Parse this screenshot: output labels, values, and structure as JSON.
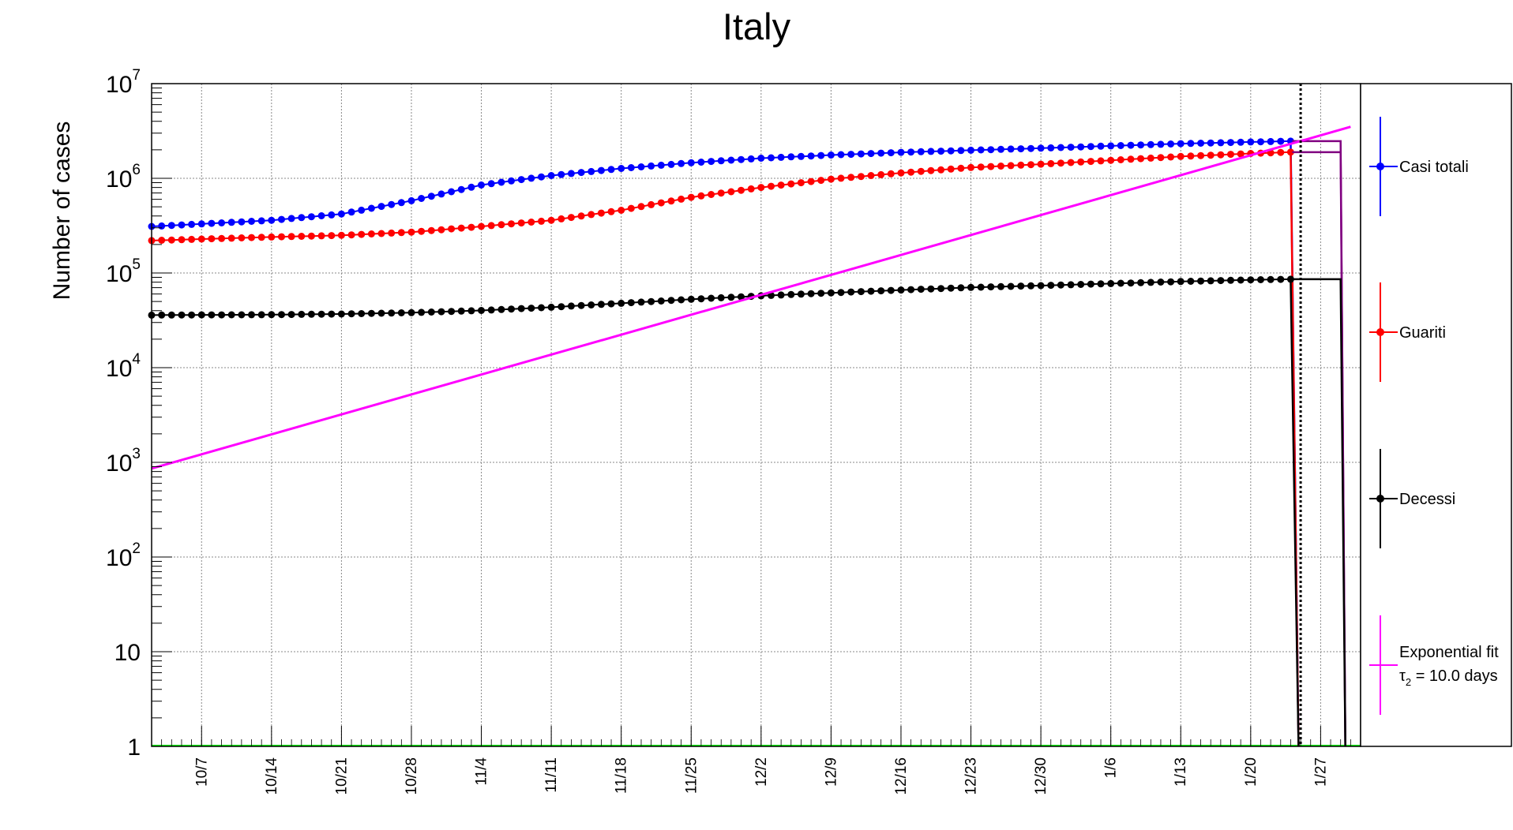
{
  "chart_data": {
    "type": "line",
    "title": "Italy",
    "ylabel": "Number of cases",
    "xlabel": "",
    "y_scale": "log",
    "ylim": [
      1,
      10000000
    ],
    "y_ticks": [
      {
        "value": 1,
        "base": "1",
        "exp": ""
      },
      {
        "value": 10,
        "base": "10",
        "exp": ""
      },
      {
        "value": 100,
        "base": "10",
        "exp": "2"
      },
      {
        "value": 1000,
        "base": "10",
        "exp": "3"
      },
      {
        "value": 10000,
        "base": "10",
        "exp": "4"
      },
      {
        "value": 100000,
        "base": "10",
        "exp": "5"
      },
      {
        "value": 1000000,
        "base": "10",
        "exp": "6"
      },
      {
        "value": 10000000,
        "base": "10",
        "exp": "7"
      }
    ],
    "x_range": [
      "2020-10-02",
      "2021-01-31"
    ],
    "x_tick_labels": [
      {
        "date": "2020-10-07",
        "label": "10/7"
      },
      {
        "date": "2020-10-14",
        "label": "10/14"
      },
      {
        "date": "2020-10-21",
        "label": "10/21"
      },
      {
        "date": "2020-10-28",
        "label": "10/28"
      },
      {
        "date": "2020-11-04",
        "label": "11/4"
      },
      {
        "date": "2020-11-11",
        "label": "11/11"
      },
      {
        "date": "2020-11-18",
        "label": "11/18"
      },
      {
        "date": "2020-11-25",
        "label": "11/25"
      },
      {
        "date": "2020-12-02",
        "label": "12/2"
      },
      {
        "date": "2020-12-09",
        "label": "12/9"
      },
      {
        "date": "2020-12-16",
        "label": "12/16"
      },
      {
        "date": "2020-12-23",
        "label": "12/23"
      },
      {
        "date": "2020-12-30",
        "label": "12/30"
      },
      {
        "date": "2021-01-06",
        "label": "1/6"
      },
      {
        "date": "2021-01-13",
        "label": "1/13"
      },
      {
        "date": "2021-01-20",
        "label": "1/20"
      },
      {
        "date": "2021-01-27",
        "label": "1/27"
      }
    ],
    "grid": true,
    "legend_position": "right",
    "vertical_marker_date": "2021-01-25",
    "series": [
      {
        "name": "Casi totali",
        "color": "#0000ff",
        "start_date": "2020-10-02",
        "end_date": "2021-01-24",
        "anchors": [
          [
            "2020-10-02",
            310000
          ],
          [
            "2020-10-14",
            360000
          ],
          [
            "2020-10-21",
            420000
          ],
          [
            "2020-10-28",
            580000
          ],
          [
            "2020-11-04",
            850000
          ],
          [
            "2020-11-11",
            1070000
          ],
          [
            "2020-11-18",
            1270000
          ],
          [
            "2020-11-25",
            1460000
          ],
          [
            "2020-12-02",
            1630000
          ],
          [
            "2020-12-09",
            1760000
          ],
          [
            "2020-12-16",
            1880000
          ],
          [
            "2020-12-23",
            1980000
          ],
          [
            "2020-12-30",
            2080000
          ],
          [
            "2021-01-06",
            2200000
          ],
          [
            "2021-01-13",
            2320000
          ],
          [
            "2021-01-20",
            2420000
          ],
          [
            "2021-01-24",
            2470000
          ]
        ],
        "histogram_level": 2470000,
        "histogram_end_date": "2021-01-29"
      },
      {
        "name": "Guariti",
        "color": "#ff0000",
        "start_date": "2020-10-02",
        "end_date": "2021-01-24",
        "anchors": [
          [
            "2020-10-02",
            220000
          ],
          [
            "2020-10-14",
            240000
          ],
          [
            "2020-10-21",
            250000
          ],
          [
            "2020-10-28",
            270000
          ],
          [
            "2020-11-04",
            310000
          ],
          [
            "2020-11-11",
            360000
          ],
          [
            "2020-11-18",
            460000
          ],
          [
            "2020-11-25",
            630000
          ],
          [
            "2020-12-02",
            800000
          ],
          [
            "2020-12-09",
            980000
          ],
          [
            "2020-12-16",
            1140000
          ],
          [
            "2020-12-23",
            1300000
          ],
          [
            "2020-12-30",
            1410000
          ],
          [
            "2021-01-06",
            1550000
          ],
          [
            "2021-01-13",
            1700000
          ],
          [
            "2021-01-20",
            1830000
          ],
          [
            "2021-01-24",
            1890000
          ]
        ],
        "histogram_level": 1890000,
        "histogram_end_date": "2021-01-29"
      },
      {
        "name": "Decessi",
        "color": "#000000",
        "start_date": "2020-10-02",
        "end_date": "2021-01-24",
        "anchors": [
          [
            "2020-10-02",
            35900
          ],
          [
            "2020-10-14",
            36300
          ],
          [
            "2020-10-21",
            36900
          ],
          [
            "2020-10-28",
            38100
          ],
          [
            "2020-11-04",
            40200
          ],
          [
            "2020-11-11",
            43500
          ],
          [
            "2020-11-18",
            47900
          ],
          [
            "2020-11-25",
            52800
          ],
          [
            "2020-12-02",
            57400
          ],
          [
            "2020-12-09",
            61700
          ],
          [
            "2020-12-16",
            66100
          ],
          [
            "2020-12-23",
            70400
          ],
          [
            "2020-12-30",
            73600
          ],
          [
            "2021-01-06",
            77300
          ],
          [
            "2021-01-13",
            81300
          ],
          [
            "2021-01-20",
            84700
          ],
          [
            "2021-01-24",
            85900
          ]
        ],
        "histogram_level": 85900,
        "histogram_end_date": "2021-01-29"
      },
      {
        "name": "Exponential fit",
        "name_line2_prefix": "τ",
        "name_line2_sub": "2",
        "name_line2_rest": " = 10.0 days",
        "color": "#ff00ff",
        "type": "fit",
        "start_date": "2020-10-02",
        "end_date": "2021-01-30",
        "start_value": 860,
        "end_value": 3500000
      }
    ],
    "histogram_color": "#800080",
    "baseline_color": "#00ff00"
  }
}
